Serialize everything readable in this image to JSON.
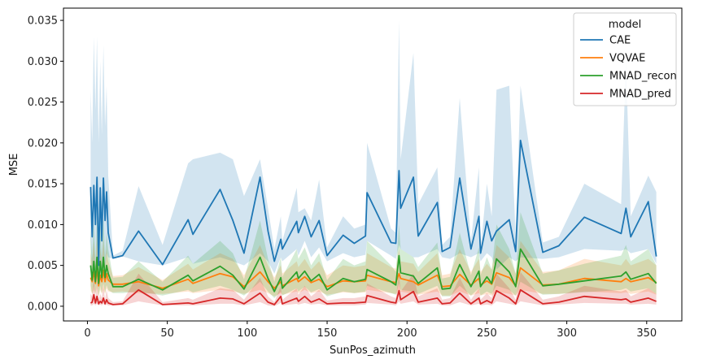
{
  "chart_data": {
    "type": "line",
    "title": "",
    "xlabel": "SunPos_azimuth",
    "ylabel": "MSE",
    "xlim": [
      -15,
      372
    ],
    "ylim": [
      -0.0018,
      0.0365
    ],
    "xticks": [
      0,
      50,
      100,
      150,
      200,
      250,
      300,
      350
    ],
    "xtick_labels": [
      "0",
      "50",
      "100",
      "150",
      "200",
      "250",
      "300",
      "350"
    ],
    "yticks": [
      0.0,
      0.005,
      0.01,
      0.015,
      0.02,
      0.025,
      0.03,
      0.035
    ],
    "ytick_labels": [
      "0.000",
      "0.005",
      "0.010",
      "0.015",
      "0.020",
      "0.025",
      "0.030",
      "0.035"
    ],
    "grid": false,
    "legend": {
      "title": "model",
      "position": "top-right"
    },
    "x": [
      2,
      3,
      4,
      5,
      6,
      7,
      8,
      9,
      10,
      11,
      12,
      13,
      16,
      22,
      32,
      47,
      63,
      66,
      83,
      91,
      98,
      108,
      113,
      117,
      121,
      122,
      131,
      132,
      136,
      140,
      145,
      150,
      160,
      167,
      174,
      175,
      190,
      193,
      195,
      196,
      204,
      207,
      219,
      222,
      227,
      233,
      240,
      245,
      246,
      250,
      253,
      256,
      264,
      268,
      271,
      285,
      295,
      311,
      334,
      337,
      340,
      351,
      356
    ],
    "series": [
      {
        "name": "CAE",
        "color": "#1f77b4",
        "values": [
          0.0146,
          0.0085,
          0.0148,
          0.01,
          0.0158,
          0.005,
          0.0145,
          0.008,
          0.0157,
          0.0105,
          0.014,
          0.009,
          0.0059,
          0.0062,
          0.0092,
          0.0051,
          0.0106,
          0.0088,
          0.0143,
          0.0105,
          0.0065,
          0.0158,
          0.0092,
          0.0055,
          0.0082,
          0.007,
          0.0104,
          0.009,
          0.011,
          0.0085,
          0.0105,
          0.0062,
          0.0087,
          0.0077,
          0.0086,
          0.0139,
          0.0078,
          0.0077,
          0.0166,
          0.012,
          0.0158,
          0.0086,
          0.0127,
          0.0067,
          0.0072,
          0.0157,
          0.007,
          0.011,
          0.0065,
          0.0104,
          0.008,
          0.0092,
          0.0106,
          0.0067,
          0.0203,
          0.0066,
          0.0074,
          0.0109,
          0.0089,
          0.012,
          0.0085,
          0.0128,
          0.0061
        ]
      },
      {
        "name": "VQVAE",
        "color": "#ff7f0e",
        "values": [
          0.0035,
          0.003,
          0.0042,
          0.0028,
          0.0046,
          0.0025,
          0.0038,
          0.003,
          0.0044,
          0.003,
          0.004,
          0.0032,
          0.0027,
          0.0027,
          0.003,
          0.0022,
          0.0033,
          0.0028,
          0.004,
          0.0036,
          0.0024,
          0.0042,
          0.003,
          0.0022,
          0.003,
          0.0025,
          0.0034,
          0.003,
          0.0036,
          0.0029,
          0.0033,
          0.0024,
          0.0031,
          0.003,
          0.0031,
          0.0038,
          0.003,
          0.0029,
          0.004,
          0.0034,
          0.003,
          0.0026,
          0.0038,
          0.0024,
          0.0025,
          0.0039,
          0.0026,
          0.0034,
          0.0026,
          0.0031,
          0.0027,
          0.0041,
          0.0035,
          0.0025,
          0.0047,
          0.0026,
          0.0027,
          0.0034,
          0.003,
          0.0034,
          0.003,
          0.0035,
          0.0029
        ]
      },
      {
        "name": "MNAD_recon",
        "color": "#2ca02c",
        "values": [
          0.005,
          0.0032,
          0.0055,
          0.003,
          0.006,
          0.0028,
          0.0055,
          0.0035,
          0.006,
          0.0035,
          0.005,
          0.004,
          0.0024,
          0.0024,
          0.0033,
          0.002,
          0.0038,
          0.0031,
          0.0049,
          0.0038,
          0.0021,
          0.006,
          0.0034,
          0.0018,
          0.0035,
          0.0022,
          0.0042,
          0.0034,
          0.0043,
          0.0031,
          0.0039,
          0.002,
          0.0034,
          0.003,
          0.0033,
          0.0045,
          0.003,
          0.0026,
          0.0062,
          0.0041,
          0.0037,
          0.0028,
          0.0047,
          0.0021,
          0.0022,
          0.0051,
          0.0024,
          0.0043,
          0.0024,
          0.0036,
          0.0028,
          0.0058,
          0.0042,
          0.0024,
          0.007,
          0.0025,
          0.0027,
          0.0031,
          0.0037,
          0.0042,
          0.0033,
          0.004,
          0.0028
        ]
      },
      {
        "name": "MNAD_pred",
        "color": "#d62728",
        "values": [
          0.0004,
          0.0005,
          0.0014,
          0.0004,
          0.0012,
          0.0003,
          0.0006,
          0.0004,
          0.001,
          0.0003,
          0.0008,
          0.0004,
          0.0002,
          0.0003,
          0.002,
          0.0002,
          0.0004,
          0.0003,
          0.001,
          0.0009,
          0.0003,
          0.0016,
          0.0005,
          0.0002,
          0.0012,
          0.0003,
          0.001,
          0.0006,
          0.0012,
          0.0005,
          0.0009,
          0.0003,
          0.0004,
          0.0004,
          0.0005,
          0.0013,
          0.0005,
          0.0004,
          0.0019,
          0.0008,
          0.0018,
          0.0005,
          0.001,
          0.0003,
          0.0004,
          0.0016,
          0.0003,
          0.001,
          0.0003,
          0.0007,
          0.0004,
          0.0019,
          0.001,
          0.0003,
          0.002,
          0.0003,
          0.0005,
          0.0012,
          0.0008,
          0.0009,
          0.0005,
          0.001,
          0.0006
        ]
      }
    ],
    "ci_bands": [
      {
        "name": "CAE",
        "lower": [
          0.008,
          0.004,
          0.005,
          0.0045,
          0.005,
          0.003,
          0.005,
          0.004,
          0.006,
          0.0045,
          0.0065,
          0.006,
          0.0058,
          0.0061,
          0.0055,
          0.005,
          0.006,
          0.0052,
          0.006,
          0.0055,
          0.005,
          0.0065,
          0.0055,
          0.004,
          0.006,
          0.0055,
          0.007,
          0.0062,
          0.008,
          0.006,
          0.0072,
          0.0055,
          0.0065,
          0.006,
          0.0063,
          0.008,
          0.0062,
          0.0058,
          0.0075,
          0.007,
          0.006,
          0.006,
          0.007,
          0.006,
          0.0058,
          0.0065,
          0.006,
          0.0065,
          0.0055,
          0.0065,
          0.006,
          0.0045,
          0.006,
          0.0055,
          0.006,
          0.0058,
          0.006,
          0.007,
          0.0068,
          0.007,
          0.0065,
          0.007,
          0.0052
        ],
        "upper": [
          0.0265,
          0.02,
          0.033,
          0.024,
          0.033,
          0.02,
          0.03,
          0.021,
          0.032,
          0.022,
          0.027,
          0.016,
          0.0062,
          0.0068,
          0.0147,
          0.0075,
          0.0175,
          0.018,
          0.0188,
          0.018,
          0.0135,
          0.018,
          0.012,
          0.007,
          0.011,
          0.008,
          0.0145,
          0.0115,
          0.012,
          0.0105,
          0.0155,
          0.0072,
          0.011,
          0.0095,
          0.01,
          0.02,
          0.0095,
          0.009,
          0.035,
          0.018,
          0.031,
          0.0125,
          0.017,
          0.0075,
          0.0085,
          0.0255,
          0.008,
          0.017,
          0.007,
          0.015,
          0.011,
          0.0265,
          0.027,
          0.0085,
          0.027,
          0.0078,
          0.0085,
          0.015,
          0.0125,
          0.03,
          0.011,
          0.016,
          0.014
        ]
      },
      {
        "name": "VQVAE",
        "lower": [
          0.002,
          0.0015,
          0.002,
          0.0015,
          0.0022,
          0.0012,
          0.002,
          0.0015,
          0.002,
          0.0015,
          0.0022,
          0.0018,
          0.0017,
          0.0018,
          0.0016,
          0.0015,
          0.0018,
          0.0016,
          0.002,
          0.0018,
          0.0015,
          0.002,
          0.0016,
          0.0012,
          0.0016,
          0.0014,
          0.0018,
          0.0016,
          0.002,
          0.0016,
          0.0018,
          0.0014,
          0.0017,
          0.0016,
          0.0017,
          0.002,
          0.0016,
          0.0015,
          0.0018,
          0.0018,
          0.0015,
          0.0014,
          0.0018,
          0.0013,
          0.0013,
          0.0018,
          0.0013,
          0.0016,
          0.0013,
          0.0015,
          0.0013,
          0.0018,
          0.0015,
          0.0013,
          0.002,
          0.0015,
          0.0015,
          0.0018,
          0.0016,
          0.0017,
          0.0015,
          0.0018,
          0.0014
        ],
        "upper": [
          0.0065,
          0.0055,
          0.008,
          0.005,
          0.0085,
          0.0045,
          0.007,
          0.0055,
          0.0082,
          0.005,
          0.007,
          0.0055,
          0.0037,
          0.0038,
          0.0048,
          0.0032,
          0.0052,
          0.0045,
          0.0065,
          0.0058,
          0.0038,
          0.0075,
          0.005,
          0.0035,
          0.005,
          0.004,
          0.0055,
          0.0048,
          0.0058,
          0.0045,
          0.0055,
          0.0038,
          0.005,
          0.0048,
          0.005,
          0.0065,
          0.0048,
          0.0046,
          0.007,
          0.0055,
          0.0052,
          0.0042,
          0.0065,
          0.0038,
          0.004,
          0.007,
          0.0042,
          0.0058,
          0.0042,
          0.0052,
          0.0045,
          0.0075,
          0.006,
          0.004,
          0.008,
          0.0042,
          0.0044,
          0.0058,
          0.005,
          0.0058,
          0.005,
          0.0058,
          0.005
        ]
      },
      {
        "name": "MNAD_recon",
        "lower": [
          0.0025,
          0.0015,
          0.0025,
          0.0015,
          0.0028,
          0.0012,
          0.0025,
          0.0016,
          0.0028,
          0.0016,
          0.0026,
          0.002,
          0.0016,
          0.0016,
          0.0018,
          0.0013,
          0.002,
          0.0017,
          0.0025,
          0.002,
          0.0013,
          0.003,
          0.0018,
          0.001,
          0.0018,
          0.0013,
          0.0022,
          0.0018,
          0.0024,
          0.0017,
          0.0021,
          0.0012,
          0.0018,
          0.0016,
          0.0018,
          0.0025,
          0.0016,
          0.0014,
          0.0028,
          0.002,
          0.0018,
          0.0015,
          0.0025,
          0.0012,
          0.0012,
          0.0025,
          0.0013,
          0.0022,
          0.0013,
          0.0018,
          0.0015,
          0.0025,
          0.002,
          0.0013,
          0.003,
          0.0014,
          0.0015,
          0.0017,
          0.002,
          0.0022,
          0.0018,
          0.0022,
          0.0015
        ],
        "upper": [
          0.0095,
          0.006,
          0.0105,
          0.0055,
          0.011,
          0.005,
          0.01,
          0.006,
          0.0108,
          0.0062,
          0.009,
          0.007,
          0.0035,
          0.0036,
          0.0055,
          0.003,
          0.0062,
          0.0052,
          0.008,
          0.0065,
          0.0033,
          0.0105,
          0.0058,
          0.003,
          0.006,
          0.0036,
          0.007,
          0.0058,
          0.0072,
          0.005,
          0.0065,
          0.0032,
          0.0058,
          0.005,
          0.0055,
          0.008,
          0.005,
          0.0042,
          0.01,
          0.007,
          0.006,
          0.0048,
          0.0078,
          0.0034,
          0.0036,
          0.009,
          0.0038,
          0.0072,
          0.0038,
          0.006,
          0.0045,
          0.01,
          0.007,
          0.004,
          0.0115,
          0.004,
          0.0044,
          0.0052,
          0.0062,
          0.0075,
          0.0055,
          0.007,
          0.005
        ]
      },
      {
        "name": "MNAD_pred",
        "lower": [
          0.0001,
          0.0001,
          0.0003,
          0.0001,
          0.0003,
          0.0001,
          0.0002,
          0.0001,
          0.0003,
          0.0001,
          0.0002,
          0.0001,
          0.0001,
          0.0001,
          0.0006,
          0.0001,
          0.0001,
          0.0001,
          0.0003,
          0.0003,
          0.0001,
          0.0005,
          0.0001,
          0.0,
          0.0004,
          0.0001,
          0.0003,
          0.0002,
          0.0004,
          0.0002,
          0.0003,
          0.0001,
          0.0001,
          0.0001,
          0.0002,
          0.0004,
          0.0002,
          0.0001,
          0.0006,
          0.0003,
          0.0006,
          0.0002,
          0.0003,
          0.0001,
          0.0001,
          0.0005,
          0.0001,
          0.0003,
          0.0001,
          0.0002,
          0.0001,
          0.0006,
          0.0003,
          0.0001,
          0.0006,
          0.0001,
          0.0002,
          0.0004,
          0.0003,
          0.0003,
          0.0002,
          0.0003,
          0.0002
        ],
        "upper": [
          0.0015,
          0.0012,
          0.0035,
          0.001,
          0.003,
          0.0008,
          0.0015,
          0.001,
          0.0025,
          0.0008,
          0.002,
          0.001,
          0.0005,
          0.0006,
          0.004,
          0.0005,
          0.001,
          0.0008,
          0.0022,
          0.002,
          0.0008,
          0.0035,
          0.0012,
          0.0005,
          0.0025,
          0.0008,
          0.0022,
          0.0014,
          0.0025,
          0.0012,
          0.002,
          0.0007,
          0.001,
          0.001,
          0.0012,
          0.0028,
          0.0012,
          0.001,
          0.004,
          0.0018,
          0.004,
          0.0012,
          0.0022,
          0.0008,
          0.001,
          0.0035,
          0.0008,
          0.0022,
          0.0008,
          0.0016,
          0.001,
          0.004,
          0.0022,
          0.0008,
          0.0042,
          0.0008,
          0.0012,
          0.0025,
          0.0018,
          0.002,
          0.0012,
          0.0022,
          0.0015
        ]
      }
    ]
  }
}
